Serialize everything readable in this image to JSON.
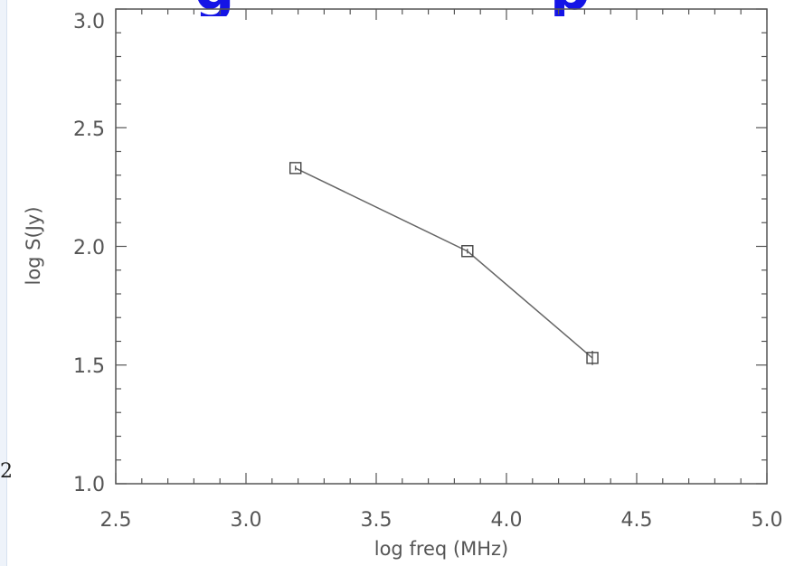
{
  "page": {
    "title_fragment_left": "g",
    "title_fragment_right": "p",
    "stray_char": "2"
  },
  "colors": {
    "title": "#1414e6",
    "axis": "#555555",
    "series": "#666666",
    "left_strip": "#eef3fa"
  },
  "chart_data": {
    "type": "line",
    "title": "",
    "xlabel": "log freq (MHz)",
    "ylabel": "log S(Jy)",
    "xlim": [
      2.5,
      5.0
    ],
    "ylim": [
      1.0,
      3.0
    ],
    "xticks": [
      "2.5",
      "3.0",
      "3.5",
      "4.0",
      "4.5",
      "5.0"
    ],
    "yticks": [
      "1.0",
      "1.5",
      "2.0",
      "2.5",
      "3.0"
    ],
    "grid": false,
    "marker": "square",
    "series": [
      {
        "x": [
          3.19,
          3.85,
          4.33
        ],
        "y": [
          2.33,
          1.98,
          1.53
        ],
        "yerr": [
          0.01,
          0.01,
          0.03
        ]
      }
    ]
  }
}
